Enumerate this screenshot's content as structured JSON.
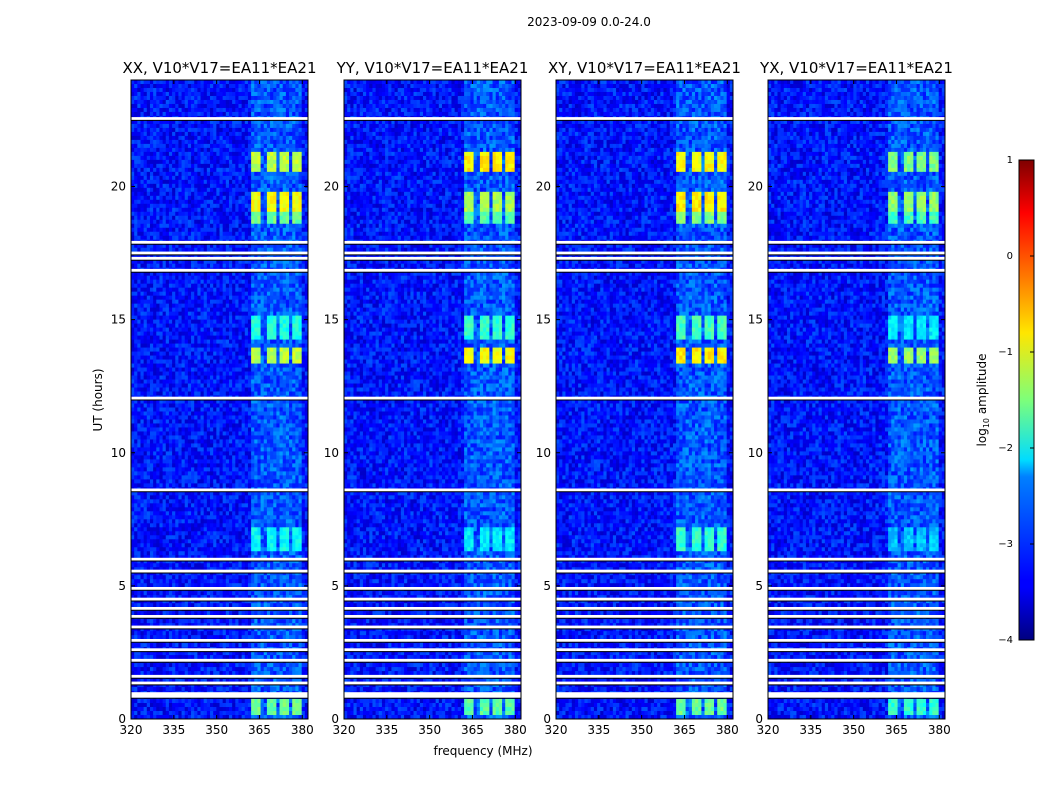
{
  "chart_data": {
    "type": "heatmap",
    "suptitle": "2023-09-09 0.0-24.0",
    "xlabel": "frequency (MHz)",
    "ylabel": "UT (hours)",
    "xlim": [
      320,
      382
    ],
    "ylim": [
      0,
      24
    ],
    "x_ticks": [
      "320",
      "335",
      "350",
      "365",
      "380"
    ],
    "y_ticks": [
      "0",
      "5",
      "10",
      "15",
      "20"
    ],
    "colorbar": {
      "label_main": "log",
      "label_sub": "10",
      "label_rest": " amplitude",
      "range": [
        -4,
        1
      ],
      "ticks": [
        "1",
        "0",
        "−1",
        "−2",
        "−3",
        "−4"
      ],
      "tick_values": [
        1,
        0,
        -1,
        -2,
        -3,
        -4
      ],
      "colormap": "jet"
    },
    "background_level": -3.3,
    "rfi_band_mhz": [
      362,
      380
    ],
    "rfi_channels_mhz": [
      364,
      369,
      374,
      378.5
    ],
    "blank_rows_ut": [
      22.55,
      17.9,
      17.5,
      17.3,
      16.85,
      12.05,
      8.6,
      6.0,
      5.55,
      4.9,
      4.5,
      4.15,
      3.85,
      3.45,
      2.95,
      2.6,
      2.2,
      1.6,
      1.35,
      0.95,
      0.85
    ],
    "panels": [
      {
        "title": "XX, V10*V17=EA11*EA21",
        "rfi_regions": [
          {
            "ut": [
              20.5,
              21.3
            ],
            "level": -1.2
          },
          {
            "ut": [
              19.0,
              19.8
            ],
            "level": -0.9
          },
          {
            "ut": [
              18.6,
              19.0
            ],
            "level": -1.6
          },
          {
            "ut": [
              13.4,
              14.0
            ],
            "level": -1.2
          },
          {
            "ut": [
              14.2,
              15.2
            ],
            "level": -2.0
          },
          {
            "ut": [
              6.3,
              7.2
            ],
            "level": -2.1
          },
          {
            "ut": [
              0.2,
              0.7
            ],
            "level": -1.6
          }
        ]
      },
      {
        "title": "YY, V10*V17=EA11*EA21",
        "rfi_regions": [
          {
            "ut": [
              20.5,
              21.3
            ],
            "level": -0.8
          },
          {
            "ut": [
              19.0,
              19.8
            ],
            "level": -1.3
          },
          {
            "ut": [
              18.6,
              19.0
            ],
            "level": -1.7
          },
          {
            "ut": [
              13.4,
              14.0
            ],
            "level": -0.9
          },
          {
            "ut": [
              14.2,
              15.2
            ],
            "level": -1.9
          },
          {
            "ut": [
              6.3,
              7.2
            ],
            "level": -2.2
          },
          {
            "ut": [
              0.2,
              0.7
            ],
            "level": -1.7
          }
        ]
      },
      {
        "title": "XY, V10*V17=EA11*EA21",
        "rfi_regions": [
          {
            "ut": [
              20.5,
              21.3
            ],
            "level": -0.9
          },
          {
            "ut": [
              19.0,
              19.8
            ],
            "level": -0.8
          },
          {
            "ut": [
              18.6,
              19.0
            ],
            "level": -1.5
          },
          {
            "ut": [
              13.4,
              14.0
            ],
            "level": -0.8
          },
          {
            "ut": [
              14.2,
              15.2
            ],
            "level": -1.8
          },
          {
            "ut": [
              6.3,
              7.2
            ],
            "level": -1.9
          },
          {
            "ut": [
              0.2,
              0.7
            ],
            "level": -1.6
          }
        ]
      },
      {
        "title": "YX, V10*V17=EA11*EA21",
        "rfi_regions": [
          {
            "ut": [
              20.5,
              21.3
            ],
            "level": -1.5
          },
          {
            "ut": [
              19.0,
              19.8
            ],
            "level": -1.4
          },
          {
            "ut": [
              18.6,
              19.0
            ],
            "level": -1.8
          },
          {
            "ut": [
              13.4,
              14.0
            ],
            "level": -1.4
          },
          {
            "ut": [
              14.2,
              15.2
            ],
            "level": -2.2
          },
          {
            "ut": [
              6.3,
              7.2
            ],
            "level": -2.4
          },
          {
            "ut": [
              0.2,
              0.7
            ],
            "level": -1.9
          }
        ]
      }
    ]
  }
}
